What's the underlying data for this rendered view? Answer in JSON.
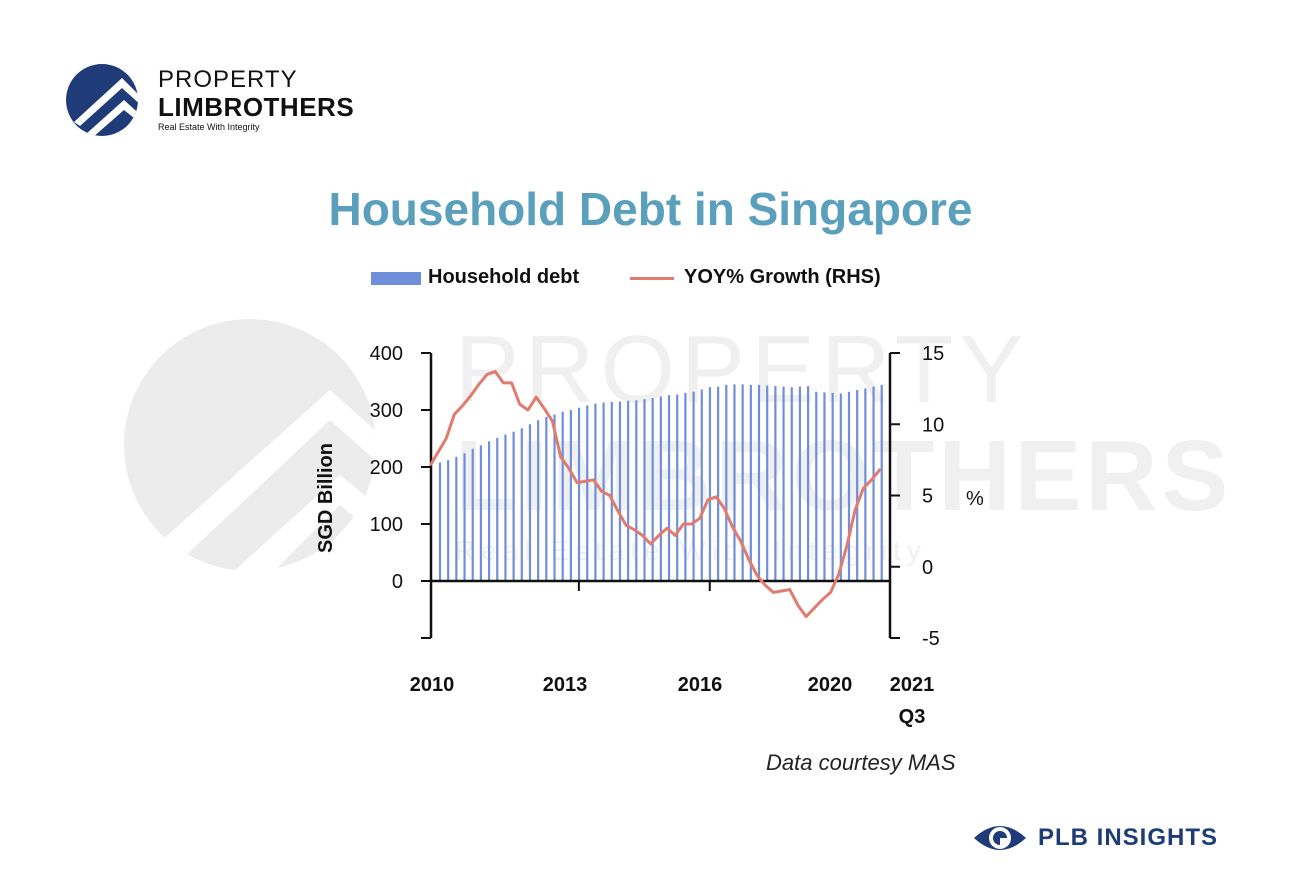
{
  "brand": {
    "line1": "PROPERTY",
    "line2": "LIMBROTHERS",
    "tagline": "Real Estate With Integrity",
    "footer": "PLB INSIGHTS",
    "primary_color": "#1f3c78",
    "icon": "house-roof-circle-icon",
    "footer_icon": "eye-icon"
  },
  "watermark": {
    "line1": "PROPERTY",
    "line2": "LIMBROTHERS",
    "tagline": "Real Estate With Integrity"
  },
  "source_note": "Data courtesy MAS",
  "colors": {
    "title": "#5aa0bd",
    "bars": "#6f8fdb",
    "line": "#e07b6f"
  },
  "chart_data": {
    "type": "bar",
    "title": "Household Debt in Singapore",
    "ylabel": "SGD Billion",
    "y2label": "%",
    "ylim": [
      -100,
      400
    ],
    "y2lim": [
      -5,
      15
    ],
    "yticks": [
      0,
      100,
      200,
      300,
      400
    ],
    "y2ticks": [
      -5,
      0,
      5,
      10,
      15
    ],
    "legend": {
      "placement": "top",
      "bars": "Household debt",
      "line": "YOY% Growth (RHS)"
    },
    "x_tick_labels": [
      {
        "label": "2010",
        "sub": "",
        "index": 0
      },
      {
        "label": "2013",
        "sub": "",
        "index": 16
      },
      {
        "label": "2016",
        "sub": "",
        "index": 32
      },
      {
        "label": "2020",
        "sub": "",
        "index": 48
      },
      {
        "label": "2021",
        "sub": "Q3",
        "index": 56
      }
    ],
    "x_tick_marks": [
      16,
      32
    ],
    "grid": false,
    "series": [
      {
        "name": "Household debt",
        "kind": "bar",
        "axis": "left",
        "values": [
          208,
          212,
          218,
          224,
          232,
          238,
          245,
          251,
          257,
          262,
          268,
          275,
          282,
          288,
          292,
          297,
          300,
          304,
          308,
          311,
          313,
          314,
          315,
          316,
          317,
          319,
          321,
          324,
          326,
          327,
          330,
          332,
          336,
          340,
          341,
          344,
          345,
          345,
          344,
          344,
          343,
          342,
          341,
          340,
          341,
          342,
          332,
          331,
          330,
          329,
          332,
          335,
          338,
          341,
          344
        ]
      },
      {
        "name": "YOY% Growth (RHS)",
        "kind": "line",
        "axis": "right",
        "x_start": 0,
        "values": [
          7.2,
          9.0,
          10.7,
          11.3,
          12.0,
          12.8,
          13.5,
          13.7,
          12.9,
          12.9,
          11.4,
          11.0,
          11.9,
          11.1,
          10.2,
          7.7,
          6.9,
          5.9,
          6.0,
          6.1,
          5.3,
          5.0,
          3.9,
          2.9,
          2.6,
          2.2,
          1.6,
          2.2,
          2.7,
          2.2,
          3.0,
          3.0,
          3.4,
          4.7,
          4.9,
          4.1,
          2.8,
          1.8,
          0.5,
          -0.6,
          -1.3,
          -1.8,
          -1.7,
          -1.6,
          -2.7,
          -3.5,
          -2.9,
          -2.3,
          -1.8,
          -0.5,
          1.5,
          4.0,
          5.5,
          6.1,
          6.8
        ]
      }
    ]
  }
}
